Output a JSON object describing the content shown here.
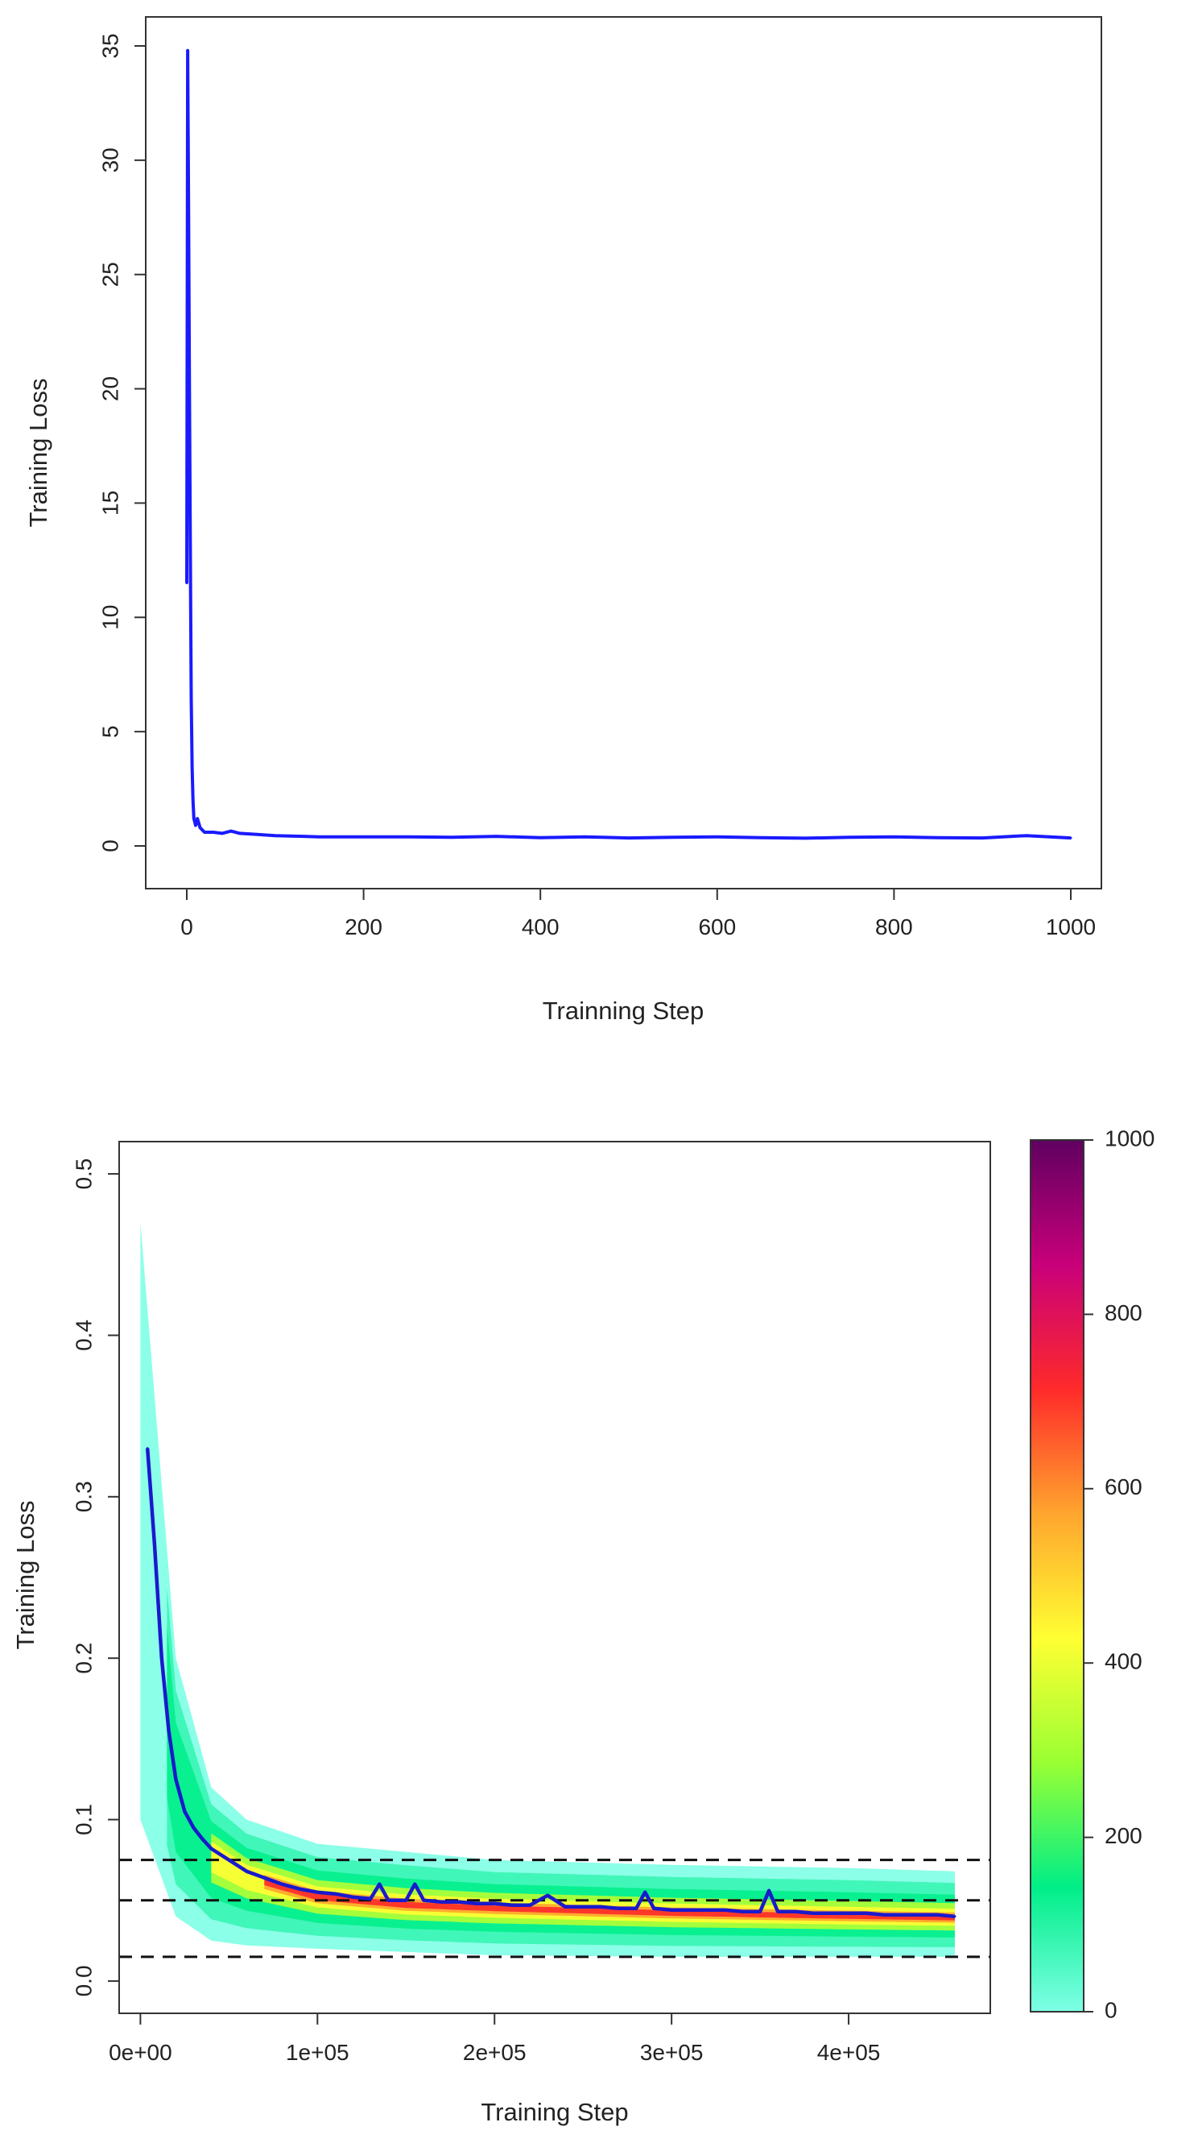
{
  "chart_data": [
    {
      "type": "line",
      "title": "",
      "xlabel": "Trainning Step",
      "ylabel": "Training Loss",
      "xlim": [
        0,
        1000
      ],
      "ylim": [
        0,
        35
      ],
      "xticks": [
        "0",
        "200",
        "400",
        "600",
        "800",
        "1000"
      ],
      "yticks": [
        "0",
        "5",
        "10",
        "15",
        "20",
        "25",
        "30",
        "35"
      ],
      "grid": false,
      "legend": "none",
      "line_color": "#1a1aff",
      "series": [
        {
          "x": [
            0,
            1,
            2,
            3,
            4,
            5,
            6,
            7,
            8,
            10,
            12,
            15,
            20,
            25,
            30,
            40,
            50,
            60,
            80,
            100,
            150,
            200,
            250,
            300,
            350,
            400,
            450,
            500,
            550,
            600,
            650,
            700,
            750,
            800,
            850,
            900,
            950,
            1000
          ],
          "values": [
            11.5,
            34.8,
            28.0,
            20.0,
            13.0,
            6.5,
            3.5,
            2.0,
            1.2,
            0.9,
            1.2,
            0.8,
            0.6,
            0.6,
            0.6,
            0.55,
            0.65,
            0.55,
            0.5,
            0.45,
            0.4,
            0.4,
            0.4,
            0.38,
            0.42,
            0.36,
            0.4,
            0.35,
            0.38,
            0.4,
            0.36,
            0.34,
            0.38,
            0.4,
            0.36,
            0.35,
            0.45,
            0.35
          ]
        }
      ]
    },
    {
      "type": "heatmap",
      "title": "",
      "xlabel": "Training Step",
      "ylabel": "Training Loss",
      "xlim": [
        -12000,
        480000
      ],
      "ylim": [
        -0.02,
        0.52
      ],
      "xticks": [
        "0e+00",
        "1e+05",
        "2e+05",
        "3e+05",
        "4e+05"
      ],
      "yticks": [
        "0.0",
        "0.1",
        "0.2",
        "0.3",
        "0.4",
        "0.5"
      ],
      "grid": false,
      "colorbar": {
        "range": [
          0,
          1000
        ],
        "ticks": [
          "0",
          "200",
          "400",
          "600",
          "800",
          "1000"
        ],
        "colors": [
          "#7fffe6",
          "#00ee88",
          "#99ff33",
          "#ffff33",
          "#ffa52e",
          "#ff2a2a",
          "#c8007a",
          "#600060"
        ]
      },
      "reference_lines_y": [
        0.015,
        0.05,
        0.075
      ],
      "density_band": {
        "x": [
          0,
          20000,
          40000,
          60000,
          100000,
          150000,
          200000,
          300000,
          400000,
          460000
        ],
        "upper": [
          0.47,
          0.2,
          0.12,
          0.1,
          0.085,
          0.08,
          0.075,
          0.072,
          0.07,
          0.068
        ],
        "lower": [
          0.1,
          0.04,
          0.025,
          0.022,
          0.02,
          0.018,
          0.016,
          0.015,
          0.015,
          0.015
        ],
        "center": [
          0.33,
          0.12,
          0.078,
          0.065,
          0.052,
          0.047,
          0.045,
          0.042,
          0.04,
          0.039
        ]
      },
      "series": [
        {
          "name": "",
          "color": "#1a1acc",
          "x": [
            4000,
            8000,
            12000,
            16000,
            20000,
            25000,
            30000,
            35000,
            40000,
            50000,
            60000,
            70000,
            80000,
            90000,
            100000,
            110000,
            120000,
            130000,
            135000,
            140000,
            150000,
            155000,
            160000,
            170000,
            180000,
            190000,
            200000,
            210000,
            220000,
            230000,
            240000,
            250000,
            260000,
            270000,
            280000,
            285000,
            290000,
            300000,
            310000,
            320000,
            330000,
            340000,
            350000,
            355000,
            360000,
            370000,
            380000,
            390000,
            400000,
            410000,
            420000,
            430000,
            440000,
            450000,
            460000
          ],
          "values": [
            0.33,
            0.27,
            0.2,
            0.155,
            0.125,
            0.105,
            0.095,
            0.088,
            0.082,
            0.075,
            0.068,
            0.064,
            0.06,
            0.057,
            0.055,
            0.054,
            0.052,
            0.051,
            0.06,
            0.05,
            0.05,
            0.06,
            0.05,
            0.049,
            0.049,
            0.048,
            0.048,
            0.047,
            0.047,
            0.053,
            0.046,
            0.046,
            0.046,
            0.045,
            0.045,
            0.055,
            0.045,
            0.044,
            0.044,
            0.044,
            0.044,
            0.043,
            0.043,
            0.056,
            0.043,
            0.043,
            0.042,
            0.042,
            0.042,
            0.042,
            0.041,
            0.041,
            0.041,
            0.041,
            0.04
          ]
        }
      ]
    }
  ]
}
